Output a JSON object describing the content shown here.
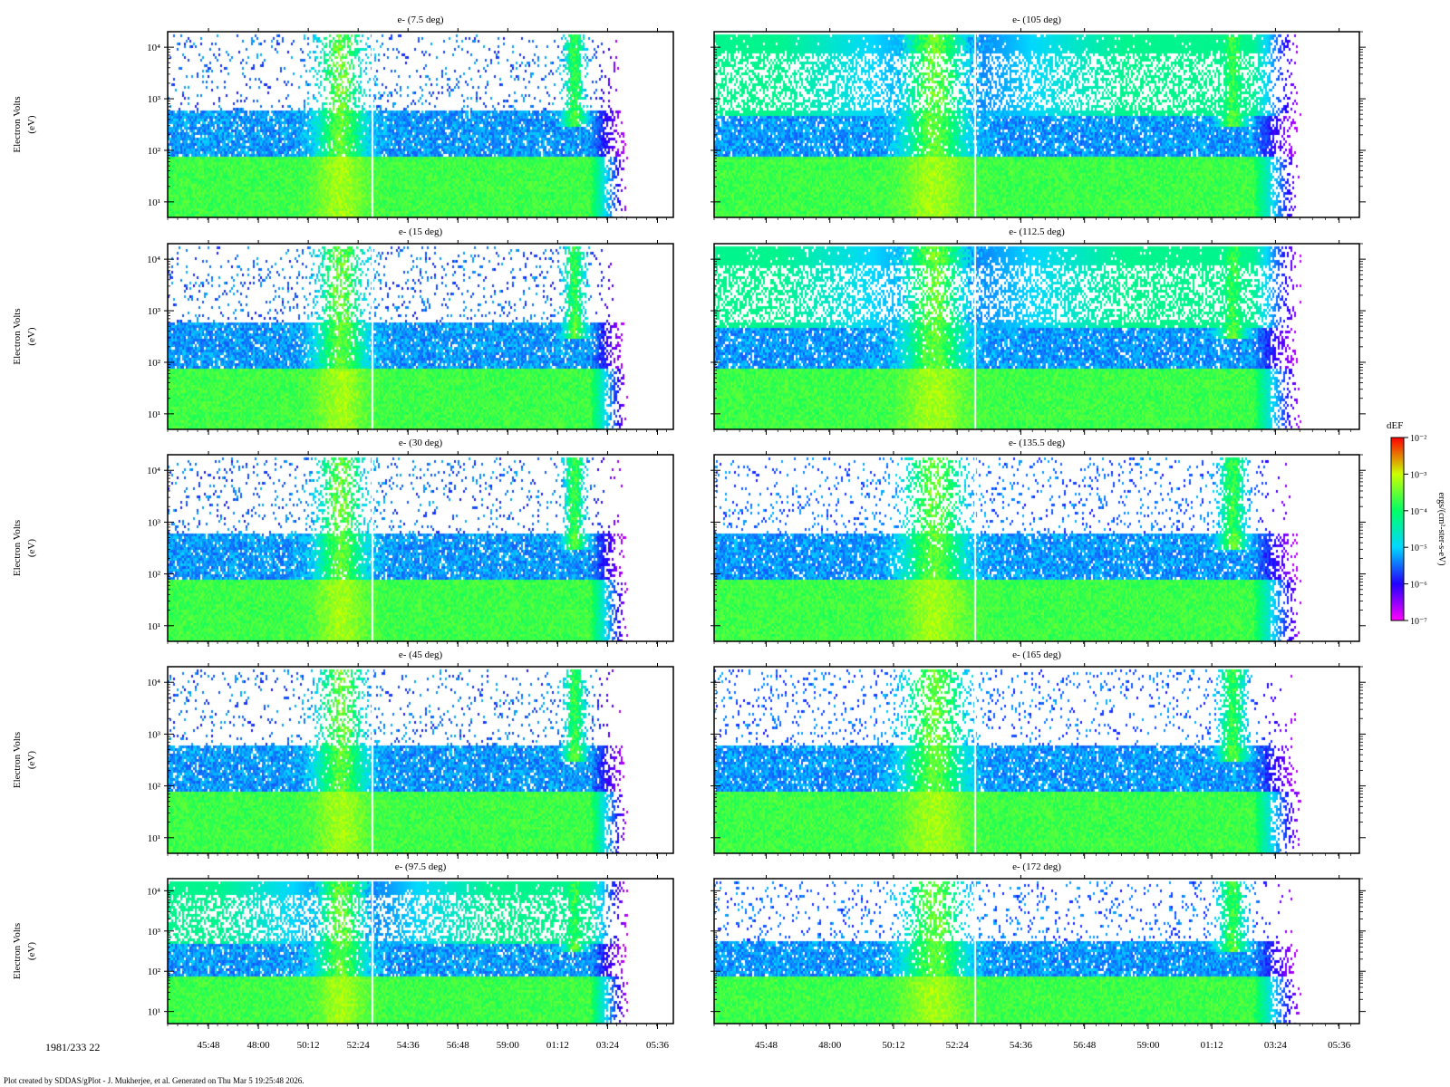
{
  "chart_data": {
    "type": "heatmap",
    "layout_rows": 5,
    "layout_cols": 2,
    "y_axis": {
      "label_line1": "Electron Volts",
      "label_line2": "(eV)",
      "scale": "log",
      "ylim": [
        5,
        20000
      ],
      "tick_values": [
        10,
        100,
        1000,
        10000
      ],
      "tick_labels": [
        "10¹",
        "10²",
        "10³",
        "10⁴"
      ]
    },
    "x_axis": {
      "tick_labels": [
        "45:48",
        "48:00",
        "50:12",
        "52:24",
        "54:36",
        "56:48",
        "59:00",
        "01:12",
        "03:24",
        "05:36"
      ],
      "tick_minutes": [
        45.8,
        48.0,
        50.2,
        52.4,
        54.6,
        56.8,
        59.0,
        61.2,
        63.4,
        65.6
      ],
      "xlim_minutes": [
        44.0,
        66.3
      ],
      "start_label": "1981/233 22"
    },
    "panels": [
      {
        "title": "e- (7.5 deg)"
      },
      {
        "title": "e- (105 deg)"
      },
      {
        "title": "e- (15 deg)"
      },
      {
        "title": "e- (112.5 deg)"
      },
      {
        "title": "e- (30 deg)"
      },
      {
        "title": "e- (135.5 deg)"
      },
      {
        "title": "e- (45 deg)"
      },
      {
        "title": "e- (165 deg)"
      },
      {
        "title": "e- (97.5 deg)"
      },
      {
        "title": "e- (172 deg)"
      }
    ],
    "colorbar": {
      "title": "dEF",
      "units": "ergs/(cm²-ster-s-eV)",
      "scale": "log",
      "range": [
        1e-07,
        0.01
      ],
      "tick_labels": [
        "10⁻²",
        "10⁻³",
        "10⁻⁴",
        "10⁻⁵",
        "10⁻⁶",
        "10⁻⁷"
      ],
      "colors": [
        "#ff00ff",
        "#2200ff",
        "#00d8ff",
        "#00ff66",
        "#ccff00",
        "#ff0000"
      ]
    }
  },
  "footer": "Plot created by SDDAS/gPlot - J. Mukherjee, et al.  Generated on Thu Mar 5 19:25:48 2026."
}
